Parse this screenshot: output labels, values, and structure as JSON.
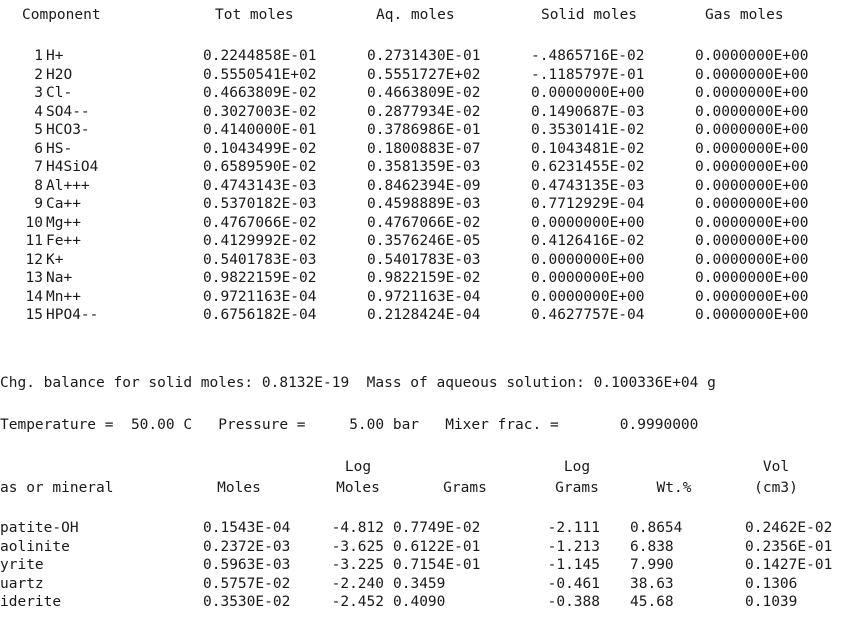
{
  "components_header": {
    "component": "Component",
    "tot": "Tot moles",
    "aq": "Aq. moles",
    "solid": "Solid moles",
    "gas": "Gas moles"
  },
  "components": [
    {
      "num": "1",
      "name": "H+",
      "tot": "0.2244858E-01",
      "aq": "0.2731430E-01",
      "solid": "-.4865716E-02",
      "gas": "0.0000000E+00"
    },
    {
      "num": "2",
      "name": "H2O",
      "tot": "0.5550541E+02",
      "aq": "0.5551727E+02",
      "solid": "-.1185797E-01",
      "gas": "0.0000000E+00"
    },
    {
      "num": "3",
      "name": "Cl-",
      "tot": "0.4663809E-02",
      "aq": "0.4663809E-02",
      "solid": "0.0000000E+00",
      "gas": "0.0000000E+00"
    },
    {
      "num": "4",
      "name": "SO4--",
      "tot": "0.3027003E-02",
      "aq": "0.2877934E-02",
      "solid": "0.1490687E-03",
      "gas": "0.0000000E+00"
    },
    {
      "num": "5",
      "name": "HCO3-",
      "tot": "0.4140000E-01",
      "aq": "0.3786986E-01",
      "solid": "0.3530141E-02",
      "gas": "0.0000000E+00"
    },
    {
      "num": "6",
      "name": "HS-",
      "tot": "0.1043499E-02",
      "aq": "0.1800883E-07",
      "solid": "0.1043481E-02",
      "gas": "0.0000000E+00"
    },
    {
      "num": "7",
      "name": "H4SiO4",
      "tot": "0.6589590E-02",
      "aq": "0.3581359E-03",
      "solid": "0.6231455E-02",
      "gas": "0.0000000E+00"
    },
    {
      "num": "8",
      "name": "Al+++",
      "tot": "0.4743143E-03",
      "aq": "0.8462394E-09",
      "solid": "0.4743135E-03",
      "gas": "0.0000000E+00"
    },
    {
      "num": "9",
      "name": "Ca++",
      "tot": "0.5370182E-03",
      "aq": "0.4598889E-03",
      "solid": "0.7712929E-04",
      "gas": "0.0000000E+00"
    },
    {
      "num": "10",
      "name": "Mg++",
      "tot": "0.4767066E-02",
      "aq": "0.4767066E-02",
      "solid": "0.0000000E+00",
      "gas": "0.0000000E+00"
    },
    {
      "num": "11",
      "name": "Fe++",
      "tot": "0.4129992E-02",
      "aq": "0.3576246E-05",
      "solid": "0.4126416E-02",
      "gas": "0.0000000E+00"
    },
    {
      "num": "12",
      "name": "K+",
      "tot": "0.5401783E-03",
      "aq": "0.5401783E-03",
      "solid": "0.0000000E+00",
      "gas": "0.0000000E+00"
    },
    {
      "num": "13",
      "name": "Na+",
      "tot": "0.9822159E-02",
      "aq": "0.9822159E-02",
      "solid": "0.0000000E+00",
      "gas": "0.0000000E+00"
    },
    {
      "num": "14",
      "name": "Mn++",
      "tot": "0.9721163E-04",
      "aq": "0.9721163E-04",
      "solid": "0.0000000E+00",
      "gas": "0.0000000E+00"
    },
    {
      "num": "15",
      "name": "HPO4--",
      "tot": "0.6756182E-04",
      "aq": "0.2128424E-04",
      "solid": "0.4627757E-04",
      "gas": "0.0000000E+00"
    }
  ],
  "chg_balance_line": "Chg. balance for solid moles: 0.8132E-19  Mass of aqueous solution: 0.100336E+04 g",
  "temperature_line": "Temperature =  50.00 C   Pressure =     5.00 bar   Mixer frac. =       0.9990000",
  "minerals_header": {
    "name": "as or mineral",
    "moles": "Moles",
    "log_moles_1": "Log",
    "log_moles_2": "Moles",
    "grams": "Grams",
    "log_grams_1": "Log",
    "log_grams_2": "Grams",
    "wt": "Wt.%",
    "vol_1": "Vol",
    "vol_2": "(cm3)"
  },
  "minerals": [
    {
      "name": "patite-OH",
      "moles": "0.1543E-04",
      "log_moles": "-4.812",
      "grams": "0.7749E-02",
      "log_grams": "-2.111",
      "wt": "0.8654",
      "vol": "0.2462E-02"
    },
    {
      "name": "aolinite",
      "moles": "0.2372E-03",
      "log_moles": "-3.625",
      "grams": "0.6122E-01",
      "log_grams": "-1.213",
      "wt": "6.838",
      "vol": "0.2356E-01"
    },
    {
      "name": "yrite",
      "moles": "0.5963E-03",
      "log_moles": "-3.225",
      "grams": "0.7154E-01",
      "log_grams": "-1.145",
      "wt": "7.990",
      "vol": "0.1427E-01"
    },
    {
      "name": "uartz",
      "moles": "0.5757E-02",
      "log_moles": "-2.240",
      "grams": "0.3459",
      "log_grams": "-0.461",
      "wt": "38.63",
      "vol": "0.1306"
    },
    {
      "name": "iderite",
      "moles": "0.3530E-02",
      "log_moles": "-2.452",
      "grams": "0.4090",
      "log_grams": "-0.388",
      "wt": "45.68",
      "vol": "0.1039"
    }
  ]
}
